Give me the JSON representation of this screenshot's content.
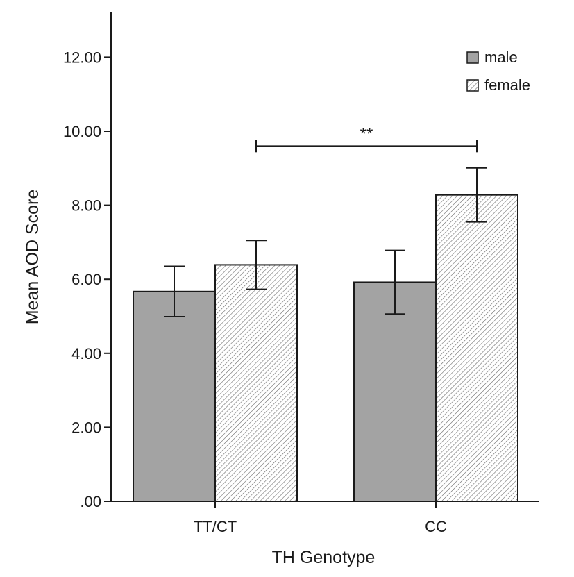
{
  "chart_data": {
    "type": "bar",
    "xlabel": "TH Genotype",
    "ylabel": "Mean AOD Score",
    "ylim": [
      0,
      13
    ],
    "yticks": [
      {
        "value": 0,
        "label": ".00"
      },
      {
        "value": 2,
        "label": "2.00"
      },
      {
        "value": 4,
        "label": "4.00"
      },
      {
        "value": 6,
        "label": "6.00"
      },
      {
        "value": 8,
        "label": "8.00"
      },
      {
        "value": 10,
        "label": "10.00"
      },
      {
        "value": 12,
        "label": "12.00"
      }
    ],
    "categories": [
      "TT/CT",
      "CC"
    ],
    "series": [
      {
        "name": "male",
        "values": [
          5.67,
          5.92
        ],
        "err_low": [
          4.99,
          5.06
        ],
        "err_high": [
          6.35,
          6.78
        ],
        "color": "#a3a3a3",
        "pattern": "solid"
      },
      {
        "name": "female",
        "values": [
          6.39,
          8.28
        ],
        "err_low": [
          5.73,
          7.55
        ],
        "err_high": [
          7.05,
          9.01
        ],
        "color": "#ffffff",
        "pattern": "diagonal-hatch"
      }
    ],
    "significance": {
      "label": "**",
      "y": 9.6,
      "from": {
        "category": 0,
        "series": 1
      },
      "to": {
        "category": 1,
        "series": 1
      }
    },
    "legend_position": "top-right",
    "grid": false
  }
}
